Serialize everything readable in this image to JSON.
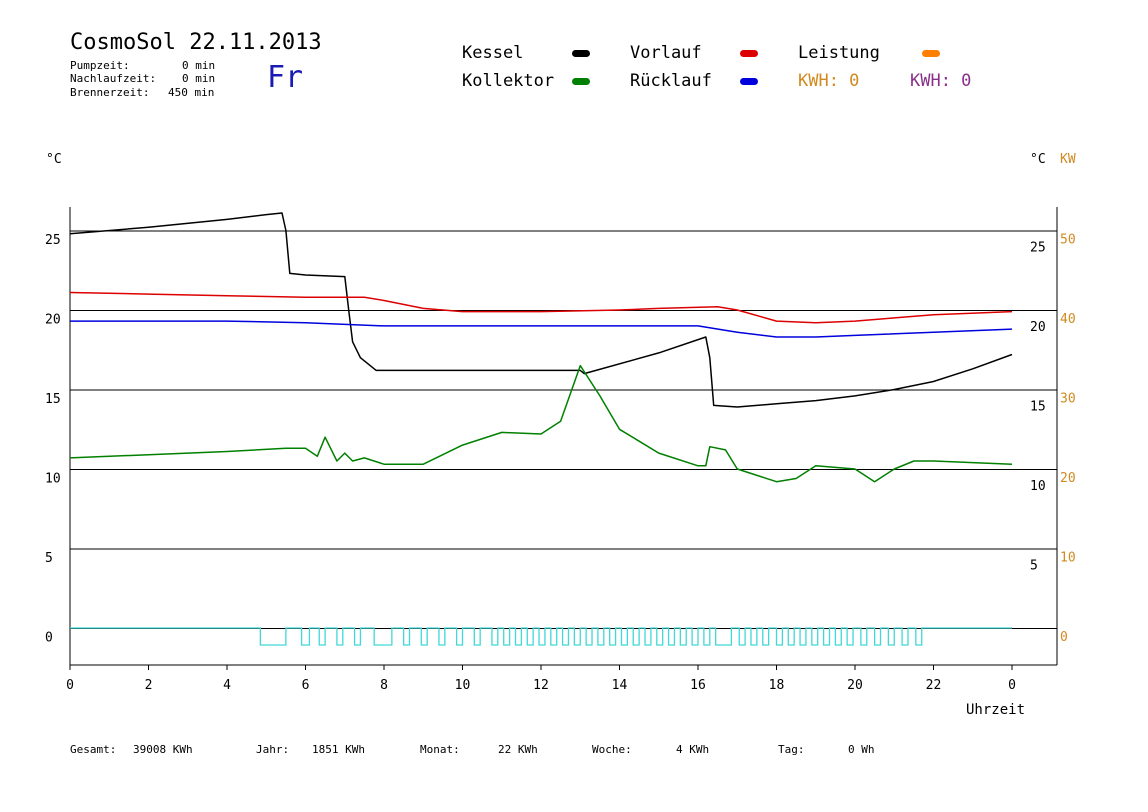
{
  "header": {
    "title": "CosmoSol 22.11.2013",
    "day": "Fr",
    "stats": [
      {
        "label": "Pumpzeit:",
        "value": "0 min"
      },
      {
        "label": "Nachlaufzeit:",
        "value": "0 min"
      },
      {
        "label": "Brennerzeit:",
        "value": "450 min"
      }
    ]
  },
  "legend": [
    {
      "name": "Kessel",
      "color": "#000000"
    },
    {
      "name": "Vorlauf",
      "color": "#dd0000"
    },
    {
      "name": "Leistung",
      "color": "#ff8000"
    },
    {
      "name": "Kollektor",
      "color": "#008000"
    },
    {
      "name": "Rücklauf",
      "color": "#0000dd"
    }
  ],
  "kwh": [
    {
      "text": "KWH: 0",
      "color": "#d08a20"
    },
    {
      "text": "KWH: 0",
      "color": "#8a308a"
    }
  ],
  "axes": {
    "left_unit": "°C",
    "right_unit_c": "°C",
    "right_unit_kw": "KW",
    "xlabel": "Uhrzeit"
  },
  "footer": [
    {
      "label": "Gesamt:",
      "value": "39008 KWh"
    },
    {
      "label": "Jahr:",
      "value": "1851 KWh"
    },
    {
      "label": "Monat:",
      "value": "22 KWh"
    },
    {
      "label": "Woche:",
      "value": "4 KWh"
    },
    {
      "label": "Tag:",
      "value": "0 Wh"
    }
  ],
  "chart_data": {
    "type": "line",
    "x_range": [
      0,
      24
    ],
    "x_ticks": [
      "0",
      "2",
      "4",
      "6",
      "8",
      "10",
      "12",
      "14",
      "16",
      "18",
      "20",
      "22",
      "0"
    ],
    "y_left_ticks": [
      0,
      5,
      10,
      15,
      20,
      25
    ],
    "y_right_c_ticks": [
      5,
      10,
      15,
      20,
      25
    ],
    "y_right_kw_ticks": [
      0,
      10,
      20,
      30,
      40,
      50
    ],
    "y_range": [
      -2,
      27.5
    ],
    "grid": "horizontal",
    "series": [
      {
        "name": "Kessel",
        "color": "#000000",
        "x": [
          0,
          2,
          4,
          5,
          5.4,
          5.5,
          5.6,
          6,
          7,
          7.1,
          7.2,
          7.4,
          7.8,
          8,
          13,
          13.1,
          13.4,
          15,
          16.2,
          16.3,
          16.4,
          17,
          18,
          19,
          20,
          21,
          22,
          23,
          24
        ],
        "y": [
          24.8,
          25.2,
          25.7,
          26.0,
          26.1,
          25.0,
          22.3,
          22.2,
          22.1,
          20.0,
          18.0,
          17.0,
          16.2,
          16.2,
          16.2,
          16.0,
          16.2,
          17.3,
          18.3,
          17.0,
          14.0,
          13.9,
          14.1,
          14.3,
          14.6,
          15.0,
          15.5,
          16.3,
          17.2
        ]
      },
      {
        "name": "Vorlauf",
        "color": "#dd0000",
        "x": [
          0,
          2,
          4,
          6,
          7.5,
          8,
          9,
          10,
          12,
          14,
          15,
          16.5,
          17,
          18,
          19,
          20,
          21,
          22,
          24
        ],
        "y": [
          21.1,
          21.0,
          20.9,
          20.8,
          20.8,
          20.6,
          20.1,
          19.9,
          19.9,
          20.0,
          20.1,
          20.2,
          20.0,
          19.3,
          19.2,
          19.3,
          19.5,
          19.7,
          19.9
        ]
      },
      {
        "name": "Rücklauf",
        "color": "#0000dd",
        "x": [
          0,
          2,
          4,
          6,
          8,
          10,
          12,
          14,
          16,
          17,
          18,
          19,
          20,
          22,
          24
        ],
        "y": [
          19.3,
          19.3,
          19.3,
          19.2,
          19.0,
          19.0,
          19.0,
          19.0,
          19.0,
          18.6,
          18.3,
          18.3,
          18.4,
          18.6,
          18.8
        ]
      },
      {
        "name": "Kollektor",
        "color": "#008000",
        "x": [
          0,
          2,
          4,
          5.5,
          6,
          6.3,
          6.5,
          6.8,
          7,
          7.2,
          7.5,
          8,
          9,
          10,
          11,
          12,
          12.5,
          13,
          13.5,
          14,
          15,
          16,
          16.2,
          16.3,
          16.7,
          17,
          18,
          18.5,
          19,
          20,
          20.5,
          21,
          21.5,
          22,
          23,
          24
        ],
        "y": [
          10.7,
          10.9,
          11.1,
          11.3,
          11.3,
          10.8,
          12.0,
          10.5,
          11.0,
          10.5,
          10.7,
          10.3,
          10.3,
          11.5,
          12.3,
          12.2,
          13.0,
          16.5,
          14.6,
          12.5,
          11.0,
          10.2,
          10.2,
          11.4,
          11.2,
          10.0,
          9.2,
          9.4,
          10.2,
          10.0,
          9.2,
          10.0,
          10.5,
          10.5,
          10.4,
          10.3
        ]
      }
    ],
    "burner_pulses": [
      [
        4.85,
        5.5
      ],
      [
        5.9,
        6.1
      ],
      [
        6.35,
        6.5
      ],
      [
        6.8,
        6.95
      ],
      [
        7.25,
        7.4
      ],
      [
        7.75,
        8.2
      ],
      [
        8.5,
        8.65
      ],
      [
        8.95,
        9.1
      ],
      [
        9.4,
        9.55
      ],
      [
        9.85,
        10.0
      ],
      [
        10.3,
        10.45
      ],
      [
        10.75,
        10.9
      ],
      [
        11.05,
        11.2
      ],
      [
        11.35,
        11.5
      ],
      [
        11.65,
        11.8
      ],
      [
        11.95,
        12.1
      ],
      [
        12.25,
        12.4
      ],
      [
        12.55,
        12.7
      ],
      [
        12.85,
        13.0
      ],
      [
        13.15,
        13.3
      ],
      [
        13.45,
        13.6
      ],
      [
        13.75,
        13.9
      ],
      [
        14.05,
        14.2
      ],
      [
        14.35,
        14.5
      ],
      [
        14.65,
        14.8
      ],
      [
        14.95,
        15.1
      ],
      [
        15.25,
        15.4
      ],
      [
        15.55,
        15.7
      ],
      [
        15.85,
        16.0
      ],
      [
        16.15,
        16.3
      ],
      [
        16.45,
        16.85
      ],
      [
        17.05,
        17.2
      ],
      [
        17.35,
        17.5
      ],
      [
        17.65,
        17.8
      ],
      [
        18.0,
        18.15
      ],
      [
        18.3,
        18.45
      ],
      [
        18.6,
        18.75
      ],
      [
        18.9,
        19.05
      ],
      [
        19.2,
        19.35
      ],
      [
        19.5,
        19.65
      ],
      [
        19.8,
        19.95
      ],
      [
        20.15,
        20.3
      ],
      [
        20.5,
        20.65
      ],
      [
        20.85,
        21.0
      ],
      [
        21.2,
        21.35
      ],
      [
        21.55,
        21.7
      ]
    ],
    "burner_color": "#40d8d8"
  }
}
